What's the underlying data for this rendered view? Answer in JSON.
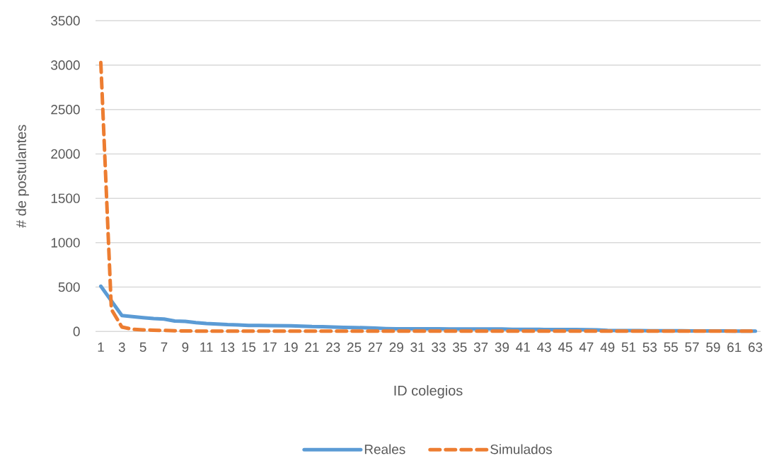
{
  "chart_data": {
    "type": "line",
    "xlabel": "ID colegios",
    "ylabel": "# de postulantes",
    "categories": [
      "1",
      null,
      "3",
      null,
      "5",
      null,
      "7",
      null,
      "9",
      null,
      "11",
      null,
      "13",
      null,
      "15",
      null,
      "17",
      null,
      "19",
      null,
      "21",
      null,
      "23",
      null,
      "25",
      null,
      "27",
      null,
      "29",
      null,
      "31",
      null,
      "33",
      null,
      "35",
      null,
      "37",
      null,
      "39",
      null,
      "41",
      null,
      "43",
      null,
      "45",
      null,
      "47",
      null,
      "49",
      null,
      "51",
      null,
      "53",
      null,
      "55",
      null,
      "57",
      null,
      "59",
      null,
      "61",
      null,
      "63"
    ],
    "series": [
      {
        "name": "Reales",
        "color": "#5b9bd5",
        "line_style": "solid",
        "values": [
          510,
          345,
          180,
          167,
          155,
          145,
          140,
          118,
          114,
          100,
          90,
          85,
          78,
          75,
          68,
          68,
          66,
          65,
          64,
          60,
          56,
          55,
          50,
          47,
          45,
          42,
          38,
          33,
          30,
          30,
          30,
          30,
          30,
          29,
          29,
          29,
          28,
          28,
          28,
          25,
          24,
          24,
          23,
          23,
          22,
          22,
          21,
          18,
          12,
          10,
          10,
          10,
          9,
          9,
          8,
          8,
          7,
          7,
          6,
          6,
          5,
          5,
          5
        ]
      },
      {
        "name": "Simulados",
        "color": "#ed7d31",
        "line_style": "dashed",
        "values": [
          3030,
          250,
          50,
          25,
          18,
          15,
          12,
          8,
          6,
          5,
          5,
          5,
          5,
          5,
          5,
          5,
          5,
          5,
          5,
          5,
          5,
          5,
          5,
          5,
          5,
          5,
          5,
          5,
          5,
          5,
          5,
          5,
          5,
          5,
          5,
          5,
          5,
          5,
          5,
          5,
          5,
          5,
          5,
          5,
          5,
          5,
          5,
          5,
          5,
          5,
          5,
          5,
          5,
          5,
          5,
          5,
          5,
          5,
          5,
          5,
          5,
          5,
          5
        ]
      }
    ],
    "ylim": [
      0,
      3500
    ],
    "yticks": [
      0,
      500,
      1000,
      1500,
      2000,
      2500,
      3000,
      3500
    ],
    "grid": "y",
    "legend": "bottom"
  }
}
